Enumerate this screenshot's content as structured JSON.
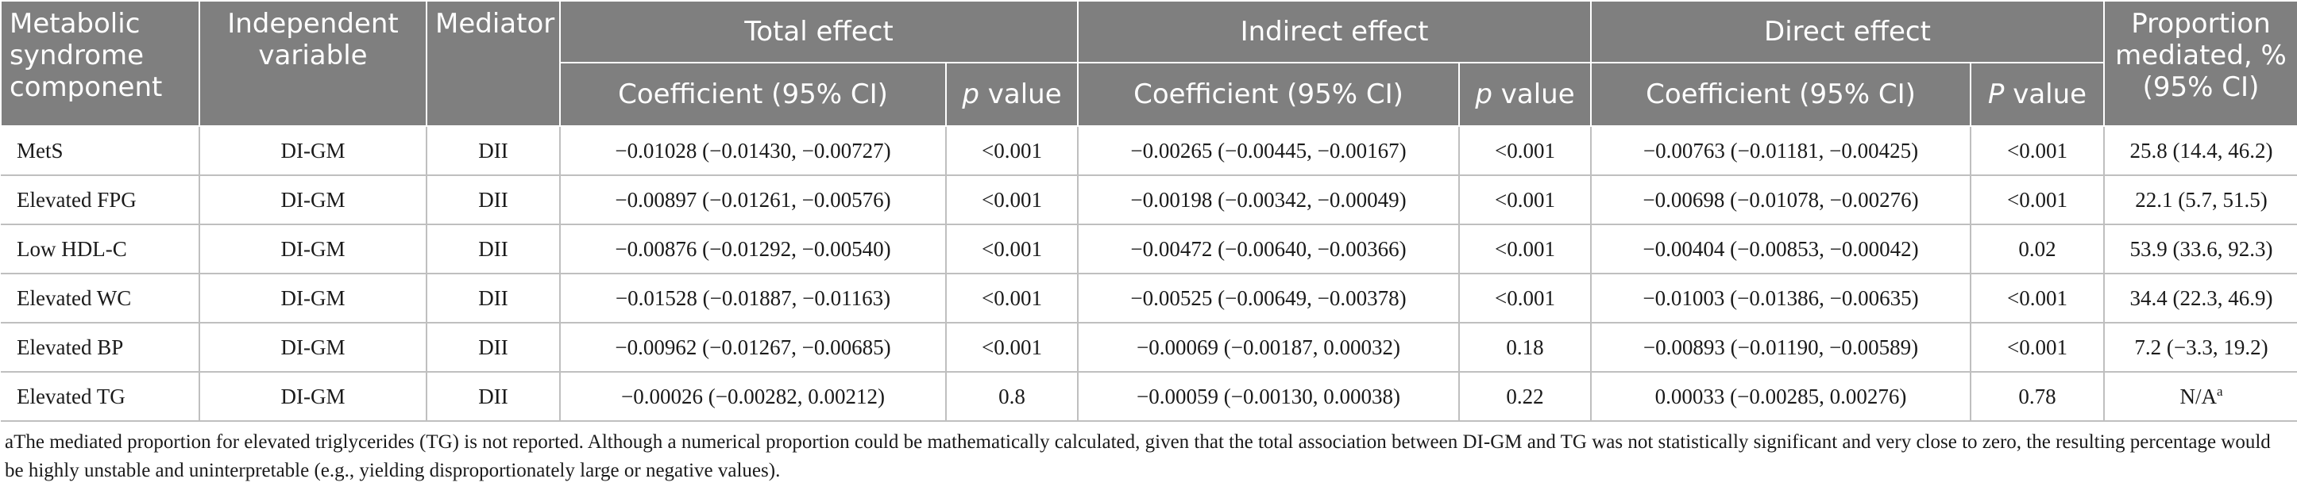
{
  "headers": {
    "component": "Metabolic syndrome component",
    "independent": "Independent variable",
    "mediator": "Mediator",
    "total": "Total effect",
    "indirect": "Indirect effect",
    "direct": "Direct effect",
    "proportion": "Proportion mediated, % (95% CI)",
    "coef": "Coefficient (95% CI)",
    "p_italic": "p",
    "p_suffix": " value",
    "P_italic": "P",
    "P_suffix": " value"
  },
  "rows": [
    {
      "component": "MetS",
      "independent": "DI-GM",
      "mediator": "DII",
      "total_coef": "−0.01028 (−0.01430, −0.00727)",
      "total_p": "<0.001",
      "indirect_coef": "−0.00265 (−0.00445, −0.00167)",
      "indirect_p": "<0.001",
      "direct_coef": "−0.00763 (−0.01181, −0.00425)",
      "direct_p": "<0.001",
      "proportion": "25.8 (14.4, 46.2)",
      "proportion_sup": ""
    },
    {
      "component": "Elevated FPG",
      "independent": "DI-GM",
      "mediator": "DII",
      "total_coef": "−0.00897 (−0.01261, −0.00576)",
      "total_p": "<0.001",
      "indirect_coef": "−0.00198 (−0.00342, −0.00049)",
      "indirect_p": "<0.001",
      "direct_coef": "−0.00698 (−0.01078, −0.00276)",
      "direct_p": "<0.001",
      "proportion": "22.1 (5.7, 51.5)",
      "proportion_sup": ""
    },
    {
      "component": "Low HDL-C",
      "independent": "DI-GM",
      "mediator": "DII",
      "total_coef": "−0.00876 (−0.01292, −0.00540)",
      "total_p": "<0.001",
      "indirect_coef": "−0.00472 (−0.00640, −0.00366)",
      "indirect_p": "<0.001",
      "direct_coef": "−0.00404 (−0.00853, −0.00042)",
      "direct_p": "0.02",
      "proportion": "53.9 (33.6, 92.3)",
      "proportion_sup": ""
    },
    {
      "component": "Elevated WC",
      "independent": "DI-GM",
      "mediator": "DII",
      "total_coef": "−0.01528 (−0.01887, −0.01163)",
      "total_p": "<0.001",
      "indirect_coef": "−0.00525 (−0.00649, −0.00378)",
      "indirect_p": "<0.001",
      "direct_coef": "−0.01003 (−0.01386, −0.00635)",
      "direct_p": "<0.001",
      "proportion": "34.4 (22.3, 46.9)",
      "proportion_sup": ""
    },
    {
      "component": "Elevated BP",
      "independent": "DI-GM",
      "mediator": "DII",
      "total_coef": "−0.00962 (−0.01267, −0.00685)",
      "total_p": "<0.001",
      "indirect_coef": "−0.00069 (−0.00187, 0.00032)",
      "indirect_p": "0.18",
      "direct_coef": "−0.00893 (−0.01190, −0.00589)",
      "direct_p": "<0.001",
      "proportion": "7.2 (−3.3, 19.2)",
      "proportion_sup": ""
    },
    {
      "component": "Elevated TG",
      "independent": "DI-GM",
      "mediator": "DII",
      "total_coef": "−0.00026 (−0.00282, 0.00212)",
      "total_p": "0.8",
      "indirect_coef": "−0.00059 (−0.00130, 0.00038)",
      "indirect_p": "0.22",
      "direct_coef": "0.00033 (−0.00285, 0.00276)",
      "direct_p": "0.78",
      "proportion": "N/A",
      "proportion_sup": "a"
    }
  ],
  "footnote": {
    "marker": "a",
    "text": "The mediated proportion for elevated triglycerides (TG) is not reported. Although a numerical proportion could be mathematically calculated, given that the total association between DI-GM and TG was not statistically significant and very close to zero, the resulting percentage would be highly unstable and uninterpretable (e.g., yielding disproportionately large or negative values)."
  }
}
